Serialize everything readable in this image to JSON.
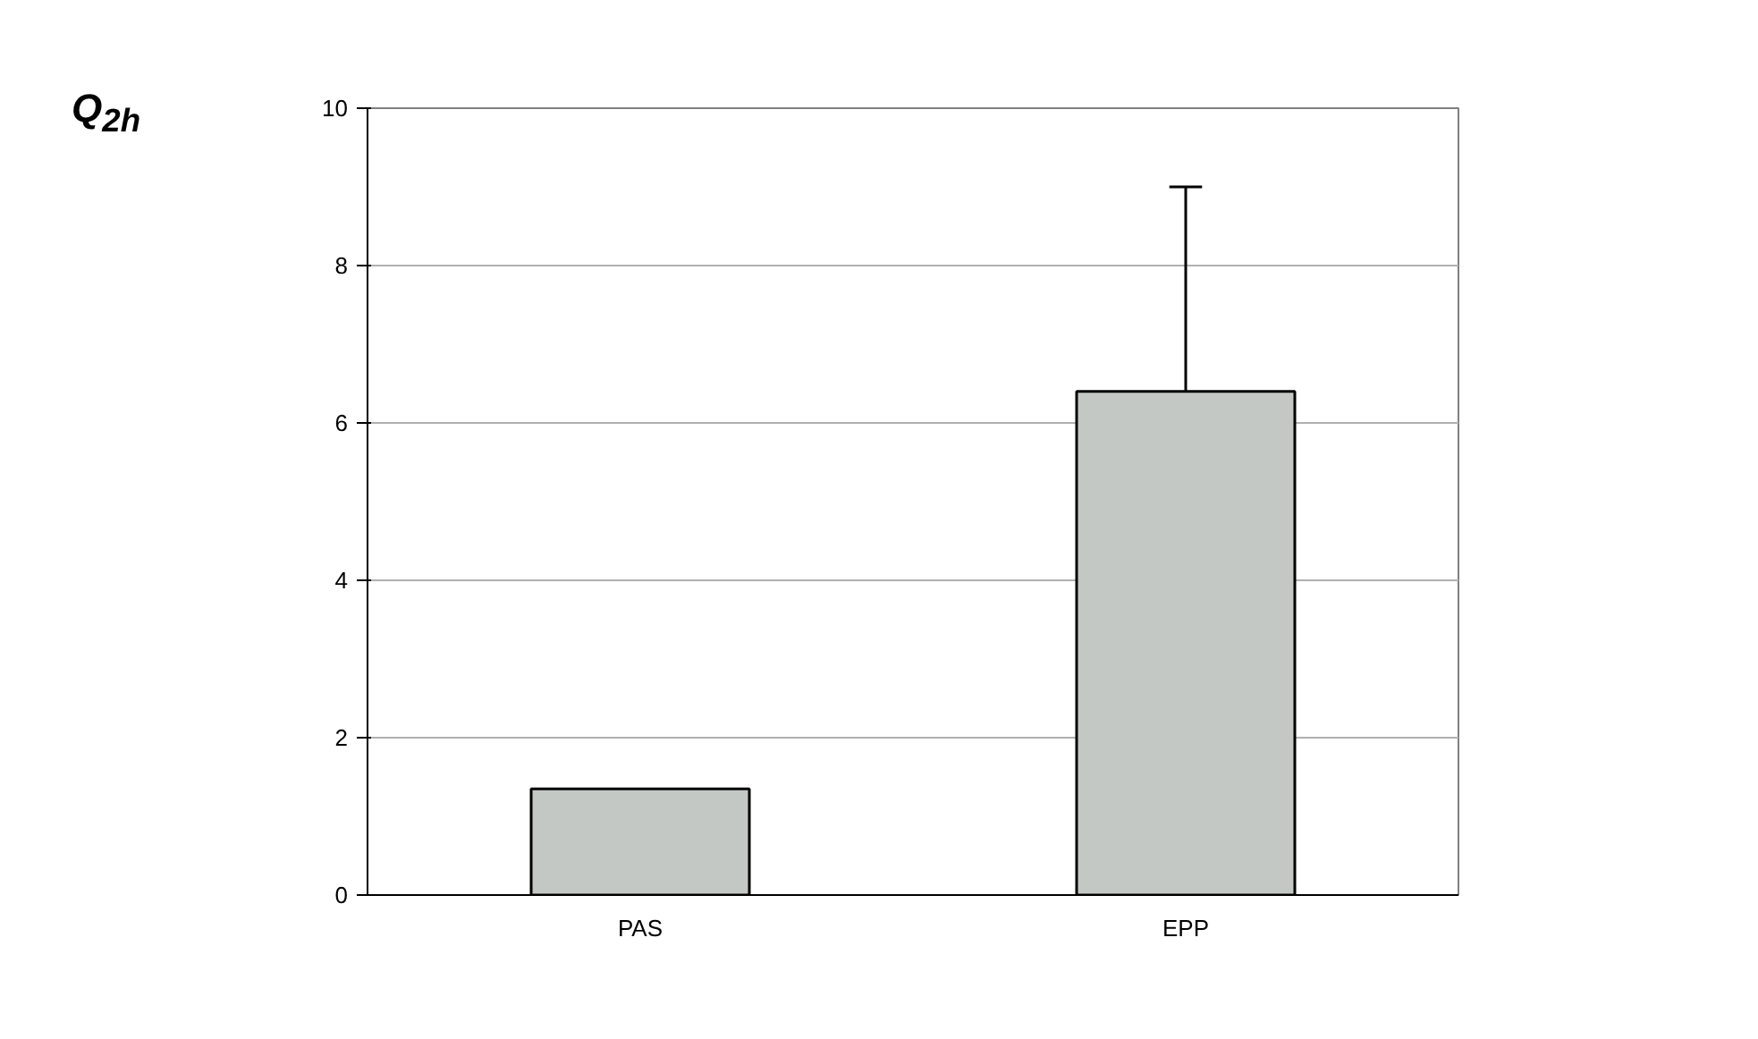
{
  "chart_data": {
    "type": "bar",
    "ylabel": "Q$_{2h}$",
    "categories": [
      "PAS",
      "EPP"
    ],
    "series": [
      {
        "color": "#c4c8c4",
        "values": [
          1.35,
          6.4
        ],
        "errors": [
          null,
          [
            6.4,
            9.0
          ]
        ]
      }
    ],
    "ylim": [
      0,
      10
    ],
    "yticks": [
      0,
      2,
      4,
      6,
      8,
      10
    ],
    "grid": "y"
  }
}
